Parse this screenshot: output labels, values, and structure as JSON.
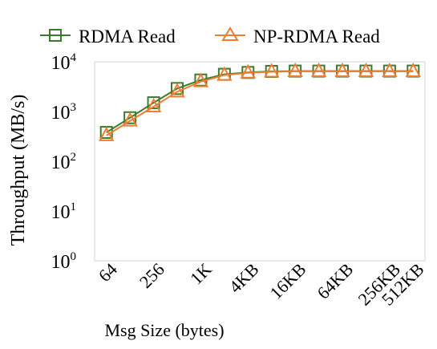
{
  "chart_data": {
    "type": "line",
    "title": "",
    "xlabel": "Msg Size (bytes)",
    "ylabel": "Throughput (MB/s)",
    "y_scale": "log",
    "ylim": [
      1,
      10000
    ],
    "y_ticks": [
      {
        "value": 1,
        "base": "10",
        "exp": "0"
      },
      {
        "value": 10,
        "base": "10",
        "exp": "1"
      },
      {
        "value": 100,
        "base": "10",
        "exp": "2"
      },
      {
        "value": 1000,
        "base": "10",
        "exp": "3"
      },
      {
        "value": 10000,
        "base": "10",
        "exp": "4"
      }
    ],
    "x_ticks": [
      {
        "at": 1,
        "label": "64"
      },
      {
        "at": 3,
        "label": "256"
      },
      {
        "at": 5,
        "label": "1K"
      },
      {
        "at": 7,
        "label": "4KB"
      },
      {
        "at": 9,
        "label": "16KB"
      },
      {
        "at": 11,
        "label": "64KB"
      },
      {
        "at": 13,
        "label": "256KB"
      },
      {
        "at": 14,
        "label": "512KB"
      }
    ],
    "x_points": [
      0.5,
      1.5,
      2.5,
      3.5,
      4.5,
      5.5,
      6.5,
      7.5,
      8.5,
      9.5,
      10.5,
      11.5,
      12.5,
      13.5
    ],
    "grid": false,
    "legend_position": "top",
    "series": [
      {
        "name": "RDMA Read",
        "color": "#3d7a2e",
        "marker": "square",
        "values": [
          380,
          750,
          1500,
          2900,
          4300,
          5600,
          6100,
          6400,
          6500,
          6500,
          6500,
          6500,
          6500,
          6500
        ]
      },
      {
        "name": "NP-RDMA Read",
        "color": "#ed7d31",
        "marker": "triangle",
        "values": [
          330,
          650,
          1250,
          2500,
          4000,
          5400,
          6000,
          6300,
          6400,
          6400,
          6400,
          6400,
          6400,
          6400
        ]
      }
    ]
  }
}
